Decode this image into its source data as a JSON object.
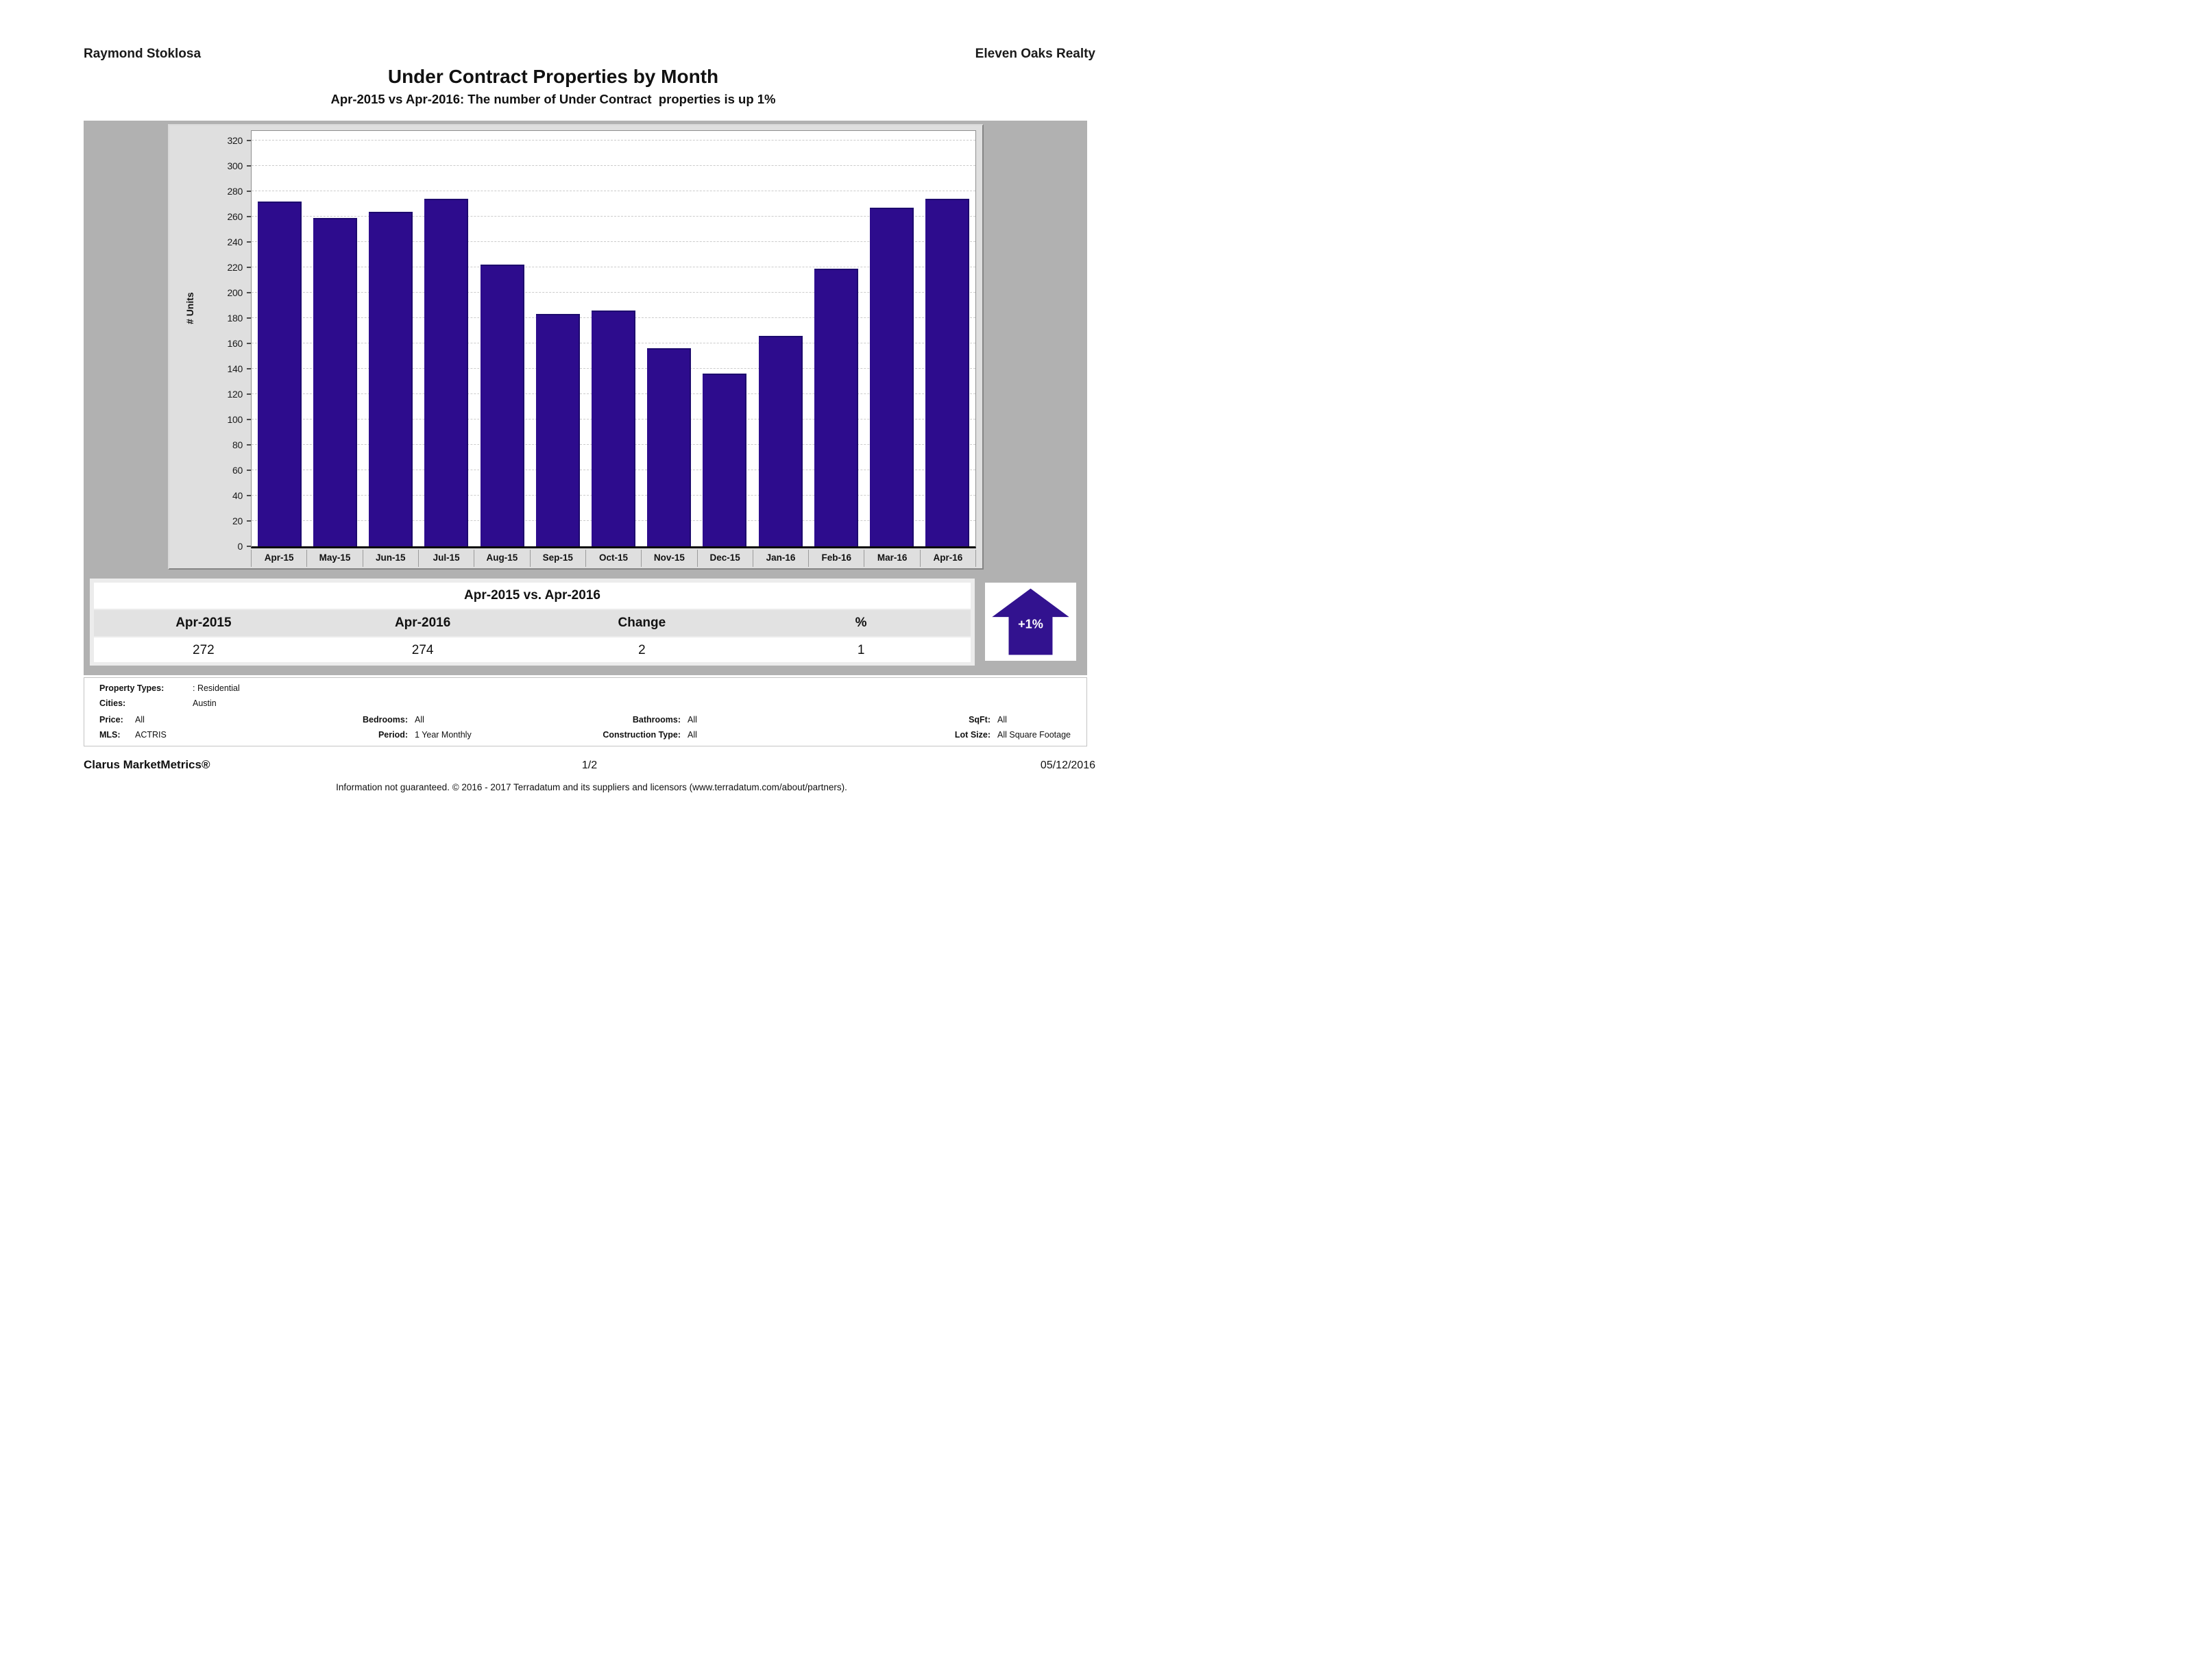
{
  "header": {
    "agent": "Raymond Stoklosa",
    "company": "Eleven Oaks Realty",
    "title": "Under Contract Properties by Month",
    "subtitle": "Apr-2015 vs Apr-2016: The number of Under Contract  properties is up 1%"
  },
  "chart_data": {
    "type": "bar",
    "title": "Under Contract Properties by Month",
    "categories": [
      "Apr-15",
      "May-15",
      "Jun-15",
      "Jul-15",
      "Aug-15",
      "Sep-15",
      "Oct-15",
      "Nov-15",
      "Dec-15",
      "Jan-16",
      "Feb-16",
      "Mar-16",
      "Apr-16"
    ],
    "values": [
      272,
      259,
      264,
      274,
      222,
      183,
      186,
      156,
      136,
      166,
      219,
      267,
      274
    ],
    "xlabel": "",
    "ylabel": "# Units",
    "ylim": [
      0,
      320
    ],
    "ytick_interval": 20,
    "grid": true,
    "legend": "none",
    "bar_color": "#2d0c8d"
  },
  "comparison": {
    "title": "Apr-2015 vs. Apr-2016",
    "columns": [
      "Apr-2015",
      "Apr-2016",
      "Change",
      "%"
    ],
    "values": [
      "272",
      "274",
      "2",
      "1"
    ],
    "badge": "+1%",
    "badge_direction": "up",
    "badge_color": "#32128f"
  },
  "criteria": {
    "rows": [
      {
        "pairs": [
          {
            "label": "Property Types:",
            "value": ": Residential"
          }
        ]
      },
      {
        "pairs": [
          {
            "label": "Cities:",
            "value": "Austin"
          }
        ]
      },
      {
        "pairs": [
          {
            "label": "Price:",
            "value": "All"
          },
          {
            "label": "Bedrooms:",
            "value": "All"
          },
          {
            "label": "Bathrooms:",
            "value": "All"
          },
          {
            "label": "SqFt:",
            "value": "All"
          }
        ]
      },
      {
        "pairs": [
          {
            "label": "MLS:",
            "value": "ACTRIS"
          },
          {
            "label": "Period:",
            "value": "1 Year Monthly"
          },
          {
            "label": "Construction Type:",
            "value": "All"
          },
          {
            "label": "Lot Size:",
            "value": "All Square Footage"
          }
        ]
      }
    ]
  },
  "footer": {
    "product": "Clarus MarketMetrics®",
    "page": "1/2",
    "date": "05/12/2016",
    "disclaimer": "Information not guaranteed. © 2016 - 2017 Terradatum and its suppliers and licensors (www.terradatum.com/about/partners)."
  }
}
